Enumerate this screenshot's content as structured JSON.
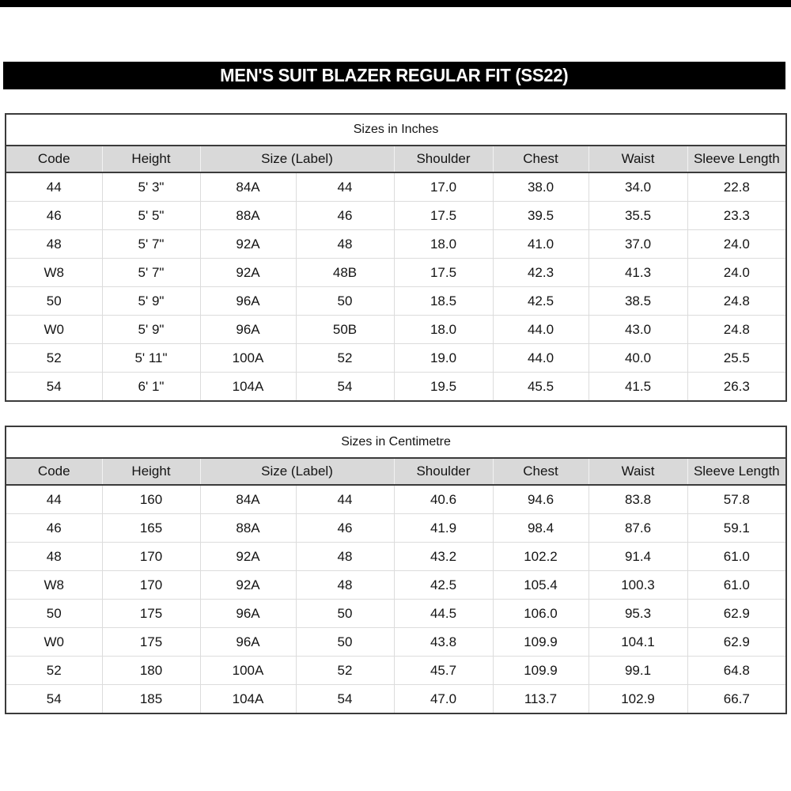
{
  "page_title": "MEN'S SUIT BLAZER REGULAR FIT (SS22)",
  "colors": {
    "bar_bg": "#000000",
    "bar_text": "#ffffff",
    "header_bg": "#d9d9d9",
    "border_dark": "#3b3b3b",
    "grid_light": "#dcdcdc",
    "header_grid": "#f2f2f2",
    "text": "#141414"
  },
  "tables": [
    {
      "caption": "Sizes in Inches",
      "columns": [
        {
          "label": "Code",
          "span": 1
        },
        {
          "label": "Height",
          "span": 1
        },
        {
          "label": "Size (Label)",
          "span": 2
        },
        {
          "label": "Shoulder",
          "span": 1
        },
        {
          "label": "Chest",
          "span": 1
        },
        {
          "label": "Waist",
          "span": 1
        },
        {
          "label": "Sleeve Length",
          "span": 1
        }
      ],
      "rows": [
        [
          "44",
          "5' 3\"",
          "84A",
          "44",
          "17.0",
          "38.0",
          "34.0",
          "22.8"
        ],
        [
          "46",
          "5' 5\"",
          "88A",
          "46",
          "17.5",
          "39.5",
          "35.5",
          "23.3"
        ],
        [
          "48",
          "5' 7\"",
          "92A",
          "48",
          "18.0",
          "41.0",
          "37.0",
          "24.0"
        ],
        [
          "W8",
          "5' 7\"",
          "92A",
          "48B",
          "17.5",
          "42.3",
          "41.3",
          "24.0"
        ],
        [
          "50",
          "5' 9\"",
          "96A",
          "50",
          "18.5",
          "42.5",
          "38.5",
          "24.8"
        ],
        [
          "W0",
          "5' 9\"",
          "96A",
          "50B",
          "18.0",
          "44.0",
          "43.0",
          "24.8"
        ],
        [
          "52",
          "5' 11\"",
          "100A",
          "52",
          "19.0",
          "44.0",
          "40.0",
          "25.5"
        ],
        [
          "54",
          "6' 1\"",
          "104A",
          "54",
          "19.5",
          "45.5",
          "41.5",
          "26.3"
        ]
      ]
    },
    {
      "caption": "Sizes in Centimetre",
      "columns": [
        {
          "label": "Code",
          "span": 1
        },
        {
          "label": "Height",
          "span": 1
        },
        {
          "label": "Size (Label)",
          "span": 2
        },
        {
          "label": "Shoulder",
          "span": 1
        },
        {
          "label": "Chest",
          "span": 1
        },
        {
          "label": "Waist",
          "span": 1
        },
        {
          "label": "Sleeve Length",
          "span": 1
        }
      ],
      "rows": [
        [
          "44",
          "160",
          "84A",
          "44",
          "40.6",
          "94.6",
          "83.8",
          "57.8"
        ],
        [
          "46",
          "165",
          "88A",
          "46",
          "41.9",
          "98.4",
          "87.6",
          "59.1"
        ],
        [
          "48",
          "170",
          "92A",
          "48",
          "43.2",
          "102.2",
          "91.4",
          "61.0"
        ],
        [
          "W8",
          "170",
          "92A",
          "48",
          "42.5",
          "105.4",
          "100.3",
          "61.0"
        ],
        [
          "50",
          "175",
          "96A",
          "50",
          "44.5",
          "106.0",
          "95.3",
          "62.9"
        ],
        [
          "W0",
          "175",
          "96A",
          "50",
          "43.8",
          "109.9",
          "104.1",
          "62.9"
        ],
        [
          "52",
          "180",
          "100A",
          "52",
          "45.7",
          "109.9",
          "99.1",
          "64.8"
        ],
        [
          "54",
          "185",
          "104A",
          "54",
          "47.0",
          "113.7",
          "102.9",
          "66.7"
        ]
      ]
    }
  ]
}
